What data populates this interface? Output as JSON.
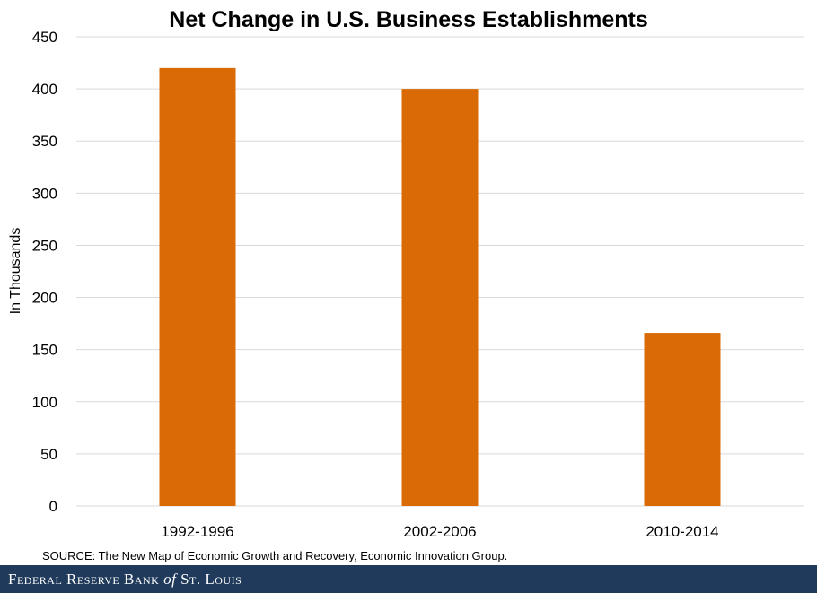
{
  "chart_data": {
    "type": "bar",
    "title": "Net Change in U.S. Business Establishments",
    "ylabel": "In Thousands",
    "xlabel": "",
    "categories": [
      "1992-1996",
      "2002-2006",
      "2010-2014"
    ],
    "values": [
      420,
      400,
      166
    ],
    "ylim": [
      0,
      450
    ],
    "yticks": [
      0,
      50,
      100,
      150,
      200,
      250,
      300,
      350,
      400,
      450
    ],
    "grid": true,
    "bar_color": "#d96a05",
    "grid_color": "#d9d9d9"
  },
  "source": "SOURCE: The New Map of Economic Growth and Recovery, Economic Innovation Group.",
  "footer": {
    "brand_before": "Federal Reserve Bank ",
    "brand_of": "of",
    "brand_after": " St. Louis",
    "background": "#1f3a5a"
  }
}
